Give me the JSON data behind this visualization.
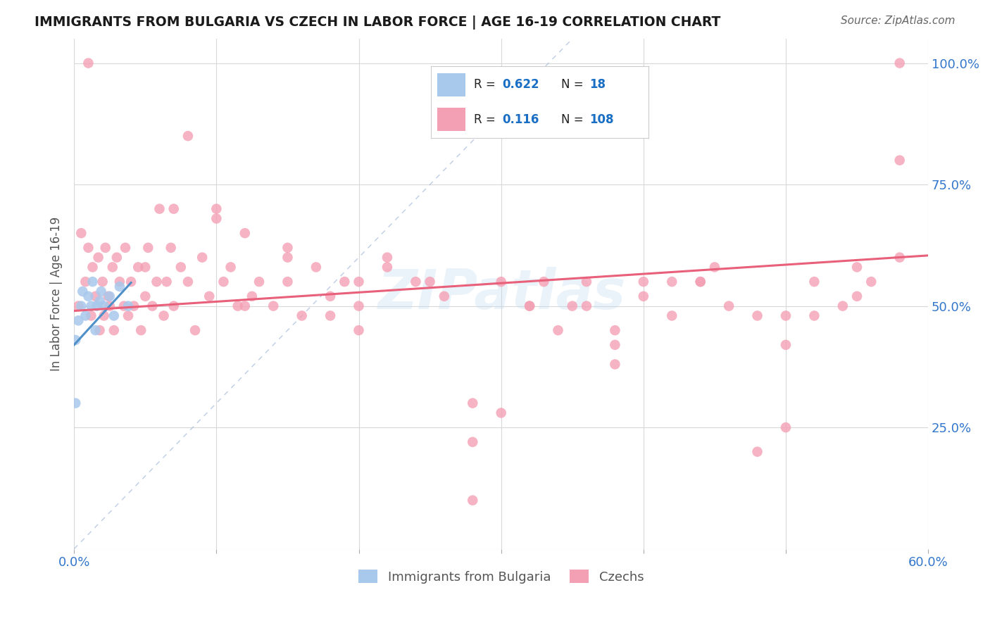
{
  "title": "IMMIGRANTS FROM BULGARIA VS CZECH IN LABOR FORCE | AGE 16-19 CORRELATION CHART",
  "source": "Source: ZipAtlas.com",
  "ylabel": "In Labor Force | Age 16-19",
  "xlim": [
    0.0,
    0.6
  ],
  "ylim": [
    0.0,
    1.05
  ],
  "xticks": [
    0.0,
    0.1,
    0.2,
    0.3,
    0.4,
    0.5,
    0.6
  ],
  "xticklabels": [
    "0.0%",
    "",
    "",
    "",
    "",
    "",
    "60.0%"
  ],
  "ytick_positions": [
    0.0,
    0.25,
    0.5,
    0.75,
    1.0
  ],
  "ytick_labels": [
    "",
    "25.0%",
    "50.0%",
    "75.0%",
    "100.0%"
  ],
  "bg_color": "#ffffff",
  "grid_color": "#d8d8d8",
  "watermark": "ZIPatlas",
  "bulgaria_color": "#a8c8ec",
  "czech_color": "#f4a0b4",
  "legend_color": "#1a6fc4",
  "trendline_bulgaria_color": "#5090c8",
  "trendline_czech_color": "#e8607a",
  "diagonal_color": "#a0b8d8",
  "bulgaria_x": [
    0.001,
    0.003,
    0.005,
    0.006,
    0.008,
    0.01,
    0.012,
    0.013,
    0.015,
    0.016,
    0.018,
    0.019,
    0.021,
    0.025,
    0.028,
    0.032,
    0.038,
    0.001
  ],
  "bulgaria_y": [
    0.43,
    0.47,
    0.5,
    0.53,
    0.48,
    0.52,
    0.5,
    0.55,
    0.45,
    0.5,
    0.51,
    0.53,
    0.5,
    0.52,
    0.48,
    0.54,
    0.5,
    0.3
  ],
  "czech_x": [
    0.003,
    0.005,
    0.008,
    0.01,
    0.012,
    0.013,
    0.015,
    0.017,
    0.018,
    0.02,
    0.021,
    0.022,
    0.024,
    0.025,
    0.027,
    0.028,
    0.03,
    0.032,
    0.035,
    0.036,
    0.038,
    0.04,
    0.042,
    0.045,
    0.047,
    0.05,
    0.052,
    0.055,
    0.058,
    0.06,
    0.063,
    0.065,
    0.068,
    0.07,
    0.075,
    0.08,
    0.085,
    0.09,
    0.095,
    0.1,
    0.105,
    0.11,
    0.115,
    0.12,
    0.125,
    0.13,
    0.14,
    0.15,
    0.16,
    0.17,
    0.18,
    0.19,
    0.2,
    0.22,
    0.24,
    0.26,
    0.28,
    0.3,
    0.32,
    0.34,
    0.36,
    0.38,
    0.4,
    0.42,
    0.44,
    0.46,
    0.48,
    0.5,
    0.52,
    0.54,
    0.56,
    0.58
  ],
  "czech_y": [
    0.5,
    0.65,
    0.55,
    0.62,
    0.48,
    0.58,
    0.52,
    0.6,
    0.45,
    0.55,
    0.48,
    0.62,
    0.52,
    0.5,
    0.58,
    0.45,
    0.6,
    0.55,
    0.5,
    0.62,
    0.48,
    0.55,
    0.5,
    0.58,
    0.45,
    0.52,
    0.62,
    0.5,
    0.55,
    0.7,
    0.48,
    0.55,
    0.62,
    0.5,
    0.58,
    0.55,
    0.45,
    0.6,
    0.52,
    0.68,
    0.55,
    0.58,
    0.5,
    0.65,
    0.52,
    0.55,
    0.5,
    0.6,
    0.48,
    0.58,
    0.52,
    0.55,
    0.5,
    0.58,
    0.55,
    0.52,
    0.3,
    0.55,
    0.5,
    0.45,
    0.55,
    0.38,
    0.52,
    0.48,
    0.55,
    0.5,
    0.48,
    0.42,
    0.55,
    0.5,
    0.55,
    0.6
  ],
  "czech_extra_x": [
    0.01,
    0.58,
    0.08,
    0.295,
    0.28,
    0.42,
    0.5,
    0.32,
    0.38,
    0.55,
    0.15,
    0.2,
    0.1,
    0.25,
    0.35,
    0.45,
    0.05,
    0.07,
    0.12,
    0.18,
    0.22,
    0.3,
    0.4,
    0.5,
    0.55,
    0.33,
    0.48,
    0.2,
    0.15,
    0.58,
    0.38,
    0.52,
    0.28,
    0.44,
    0.36
  ],
  "czech_extra_y": [
    1.0,
    1.0,
    0.85,
    0.88,
    0.1,
    0.55,
    0.48,
    0.5,
    0.42,
    0.58,
    0.62,
    0.55,
    0.7,
    0.55,
    0.5,
    0.58,
    0.58,
    0.7,
    0.5,
    0.48,
    0.6,
    0.28,
    0.55,
    0.25,
    0.52,
    0.55,
    0.2,
    0.45,
    0.55,
    0.8,
    0.45,
    0.48,
    0.22,
    0.55,
    0.5
  ]
}
